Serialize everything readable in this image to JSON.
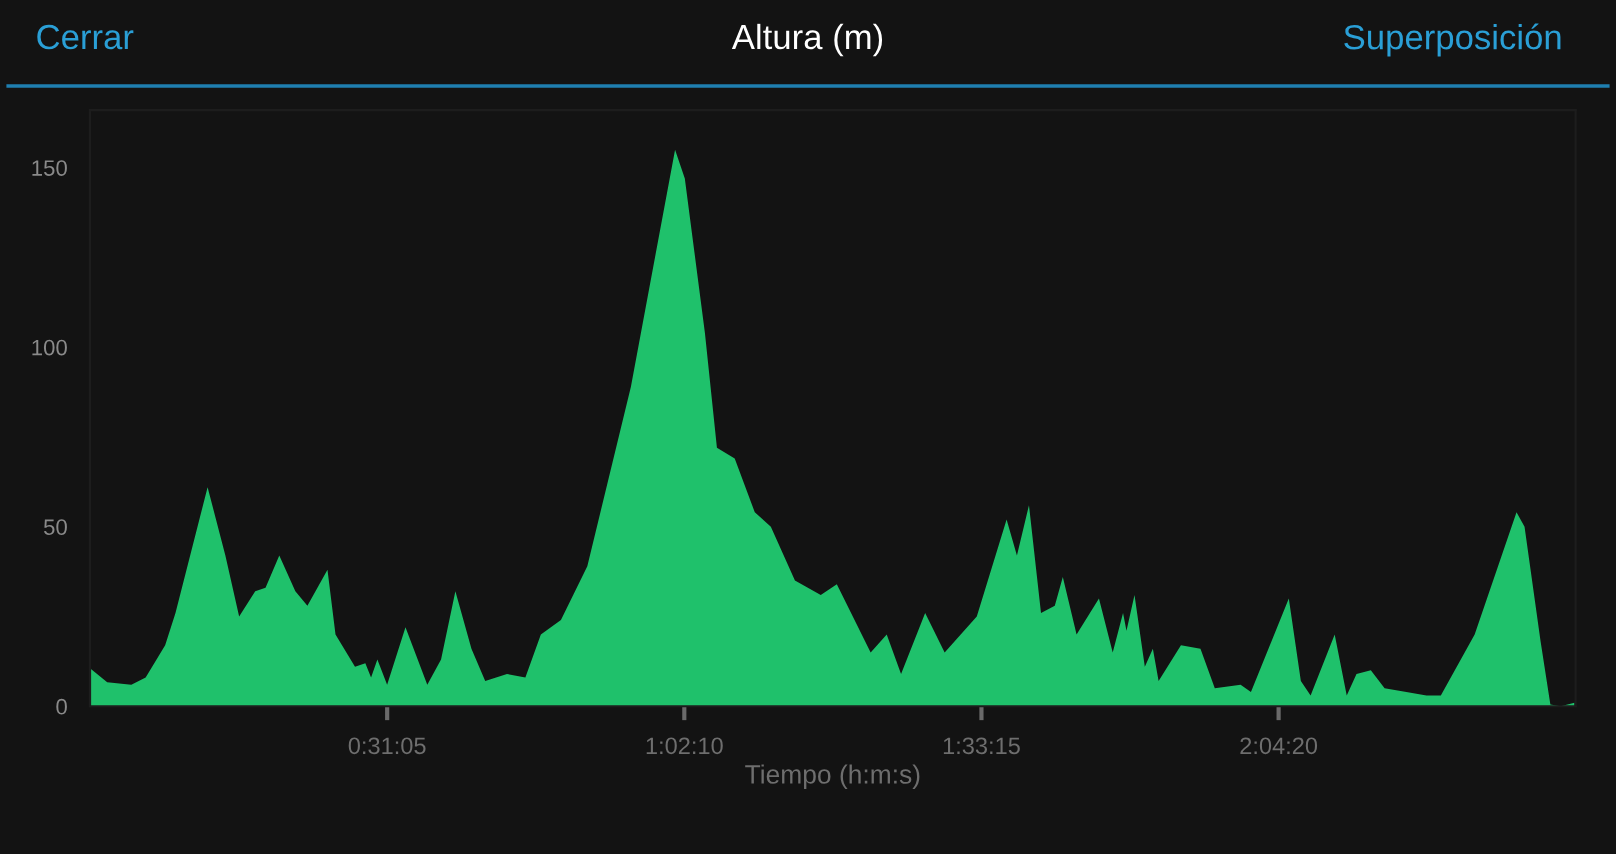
{
  "chart_data": {
    "type": "area",
    "title": "Altura (m)",
    "xlabel": "Tiempo (h:m:s)",
    "annotations": [
      "Cerrar",
      "Superposición"
    ],
    "x": [
      0,
      0.03,
      0.072,
      0.097,
      0.131,
      0.149,
      0.205,
      0.236,
      0.26,
      0.288,
      0.306,
      0.33,
      0.358,
      0.379,
      0.414,
      0.428,
      0.462,
      0.48,
      0.49,
      0.501,
      0.518,
      0.55,
      0.588,
      0.612,
      0.637,
      0.665,
      0.689,
      0.727,
      0.759,
      0.786,
      0.821,
      0.867,
      0.943,
      1.02,
      1.037,
      1.072,
      1.093,
      1.124,
      1.159,
      1.187,
      1.229,
      1.274,
      1.302,
      1.361,
      1.389,
      1.414,
      1.456,
      1.49,
      1.518,
      1.546,
      1.598,
      1.616,
      1.637,
      1.658,
      1.682,
      1.696,
      1.72,
      1.759,
      1.783,
      1.801,
      1.807,
      1.821,
      1.839,
      1.853,
      1.863,
      1.902,
      1.936,
      1.961,
      2.006,
      2.024,
      2.09,
      2.111,
      2.128,
      2.17,
      2.191,
      2.208,
      2.233,
      2.257,
      2.295,
      2.33,
      2.355,
      2.414,
      2.487,
      2.501,
      2.529,
      2.546,
      2.564,
      2.588
    ],
    "series": [
      {
        "color": "#1fc16b",
        "values": [
          10.6,
          6.7,
          6,
          8,
          17,
          26,
          61,
          42,
          25,
          32,
          33,
          42,
          32,
          28,
          38,
          20,
          11,
          12,
          8,
          13,
          6,
          22,
          6,
          13,
          32,
          16,
          7,
          9,
          8,
          20,
          24,
          39,
          89,
          155,
          147,
          104,
          72,
          69,
          54,
          50,
          35,
          31,
          34,
          15,
          20,
          9,
          26,
          15,
          20,
          25,
          52,
          42,
          56,
          26,
          28,
          36,
          20,
          30,
          15,
          26,
          21,
          31,
          11,
          16,
          7,
          17,
          16,
          5,
          6,
          4,
          30,
          7,
          3,
          20,
          3,
          9,
          10,
          5,
          4,
          3,
          3,
          20,
          54,
          50,
          18,
          0.5,
          0,
          1
        ]
      }
    ],
    "xlim": [
      0,
      2.59
    ],
    "ylim": [
      0,
      166
    ],
    "xticks": [
      {
        "value": 0.51806,
        "label": "0:31:05"
      },
      {
        "value": 1.03611,
        "label": "1:02:10"
      },
      {
        "value": 1.55417,
        "label": "1:33:15"
      },
      {
        "value": 2.07222,
        "label": "2:04:20"
      }
    ],
    "yticks": [
      0,
      50,
      100,
      150
    ],
    "grid": false,
    "legend": false
  }
}
